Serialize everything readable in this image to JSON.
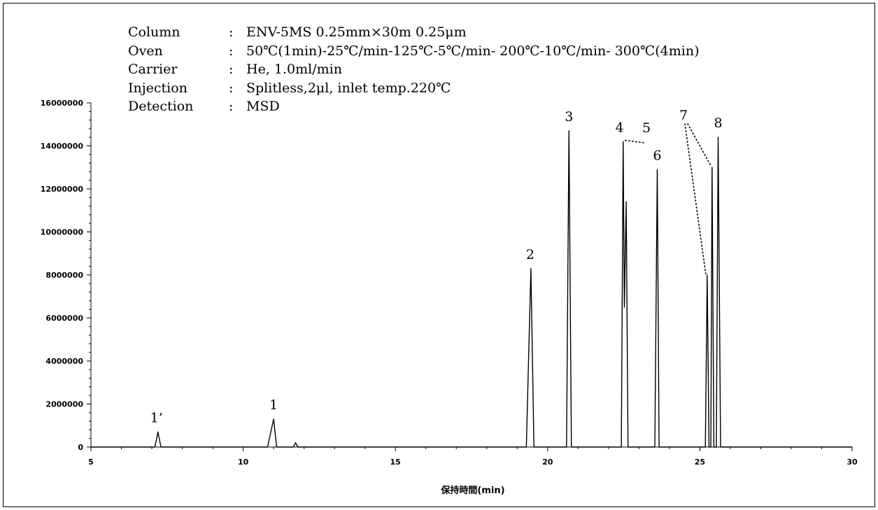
{
  "conditions": [
    {
      "label": "Column",
      "value": "ENV-5MS 0.25mm×30m 0.25μm"
    },
    {
      "label": "Oven",
      "value": "50℃(1min)-25℃/min-125℃-5℃/min- 200℃-10℃/min- 300℃(4min)"
    },
    {
      "label": "Carrier",
      "value": "He, 1.0ml/min"
    },
    {
      "label": "Injection",
      "value": "Splitless,2μl, inlet temp.220℃"
    },
    {
      "label": "Detection",
      "value": "MSD"
    }
  ],
  "colon": ":",
  "chart_data": {
    "type": "line",
    "xlabel": "保持時間(min)",
    "ylabel": "",
    "xlim": [
      5,
      30
    ],
    "ylim": [
      0,
      16000000
    ],
    "x_ticks": [
      5,
      10,
      15,
      20,
      25,
      30
    ],
    "y_ticks": [
      0,
      2000000,
      4000000,
      6000000,
      8000000,
      10000000,
      12000000,
      14000000,
      16000000
    ],
    "grid": false,
    "peaks": [
      {
        "label": "1’",
        "rt": 7.2,
        "height": 700000
      },
      {
        "label": "1",
        "rt": 11.0,
        "height": 1300000
      },
      {
        "label": "",
        "rt": 11.72,
        "height": 200000
      },
      {
        "label": "2",
        "rt": 19.45,
        "height": 8300000
      },
      {
        "label": "3",
        "rt": 20.7,
        "height": 14700000
      },
      {
        "label": "4",
        "rt": 22.48,
        "height": 14200000
      },
      {
        "label": "5",
        "rt": 22.58,
        "height": 11400000
      },
      {
        "label": "6",
        "rt": 23.6,
        "height": 12900000
      },
      {
        "label": "",
        "rt": 25.24,
        "height": 8000000
      },
      {
        "label": "",
        "rt": 25.4,
        "height": 13000000
      },
      {
        "label": "8",
        "rt": 25.6,
        "height": 14400000
      }
    ],
    "annotations": [
      {
        "label": "7",
        "points_to": [
          25.24,
          25.4
        ]
      },
      {
        "label": "5",
        "points_to": [
          22.58
        ]
      }
    ],
    "series": [
      {
        "values": [
          [
            5.0,
            0
          ],
          [
            7.1,
            0
          ],
          [
            7.2,
            700000
          ],
          [
            7.3,
            0
          ],
          [
            10.8,
            0
          ],
          [
            11.0,
            1300000
          ],
          [
            11.1,
            0
          ],
          [
            11.65,
            0
          ],
          [
            11.72,
            200000
          ],
          [
            11.8,
            0
          ],
          [
            19.3,
            0
          ],
          [
            19.45,
            8300000
          ],
          [
            19.55,
            0
          ],
          [
            20.62,
            0
          ],
          [
            20.7,
            14700000
          ],
          [
            20.78,
            0
          ],
          [
            22.42,
            0
          ],
          [
            22.48,
            14200000
          ],
          [
            22.52,
            6500000
          ],
          [
            22.58,
            11400000
          ],
          [
            22.64,
            0
          ],
          [
            23.52,
            0
          ],
          [
            23.6,
            12900000
          ],
          [
            23.66,
            0
          ],
          [
            25.18,
            0
          ],
          [
            25.24,
            8000000
          ],
          [
            25.3,
            0
          ],
          [
            25.36,
            0
          ],
          [
            25.4,
            13000000
          ],
          [
            25.46,
            0
          ],
          [
            25.54,
            0
          ],
          [
            25.6,
            14400000
          ],
          [
            25.68,
            0
          ],
          [
            30.0,
            0
          ]
        ]
      }
    ]
  }
}
